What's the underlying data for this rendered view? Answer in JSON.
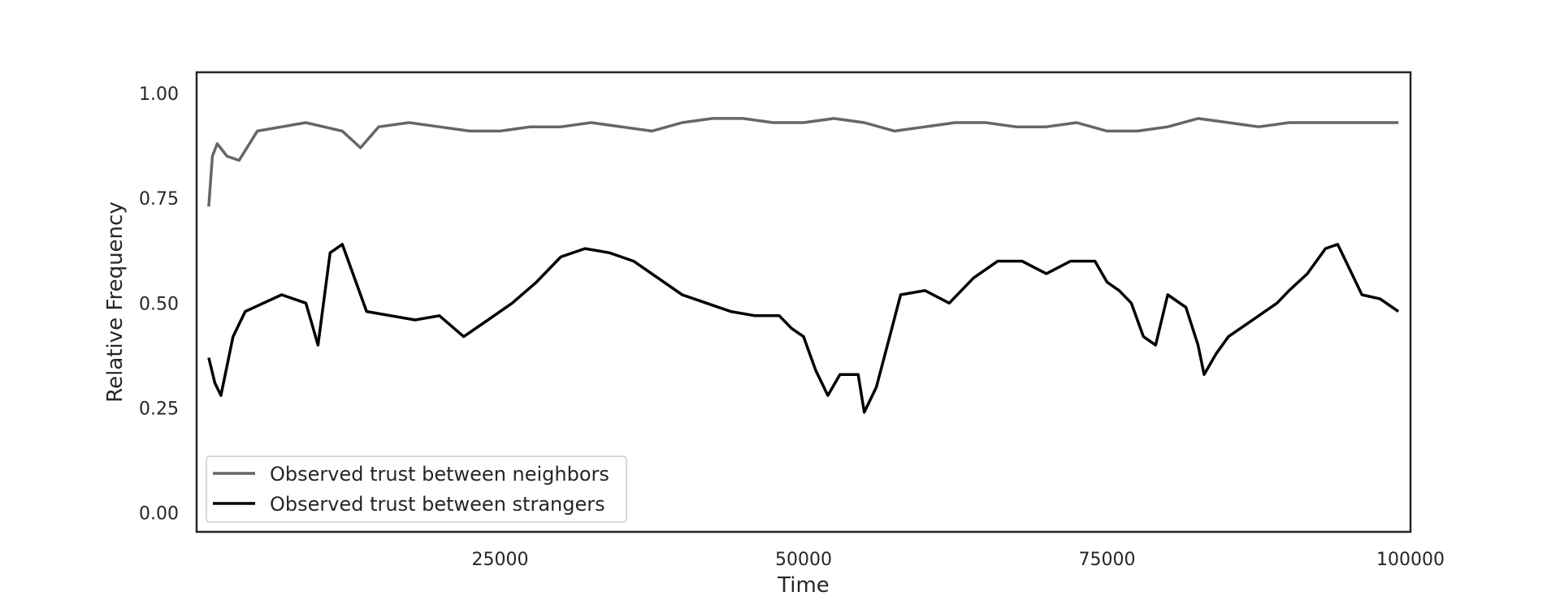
{
  "chart_data": {
    "type": "line",
    "title": "",
    "xlabel": "Time",
    "ylabel": "Relative Frequency",
    "xlim": [
      0,
      100000
    ],
    "ylim": [
      -0.045,
      1.05
    ],
    "xticks": [
      25000,
      50000,
      75000,
      100000
    ],
    "xtick_labels": [
      "25000",
      "50000",
      "75000",
      "100000"
    ],
    "yticks": [
      0.0,
      0.25,
      0.5,
      0.75,
      1.0
    ],
    "ytick_labels": [
      "0.00",
      "0.25",
      "0.50",
      "0.75",
      "1.00"
    ],
    "grid": false,
    "legend_position": "lower-left",
    "series": [
      {
        "name": "Observed trust between neighbors",
        "color": "#666666",
        "x": [
          1000,
          1300,
          1700,
          2500,
          3500,
          5000,
          7000,
          9000,
          12000,
          13500,
          15000,
          17500,
          20000,
          22500,
          25000,
          27500,
          30000,
          32500,
          35000,
          37500,
          40000,
          42500,
          45000,
          47500,
          50000,
          52500,
          55000,
          57500,
          60000,
          62500,
          65000,
          67500,
          70000,
          72500,
          75000,
          77500,
          80000,
          82500,
          85000,
          87500,
          90000,
          92500,
          95000,
          97500,
          99000
        ],
        "y": [
          0.73,
          0.85,
          0.88,
          0.85,
          0.84,
          0.91,
          0.92,
          0.93,
          0.91,
          0.87,
          0.92,
          0.93,
          0.92,
          0.91,
          0.91,
          0.92,
          0.92,
          0.93,
          0.92,
          0.91,
          0.93,
          0.94,
          0.94,
          0.93,
          0.93,
          0.94,
          0.93,
          0.91,
          0.92,
          0.93,
          0.93,
          0.92,
          0.92,
          0.93,
          0.91,
          0.91,
          0.92,
          0.94,
          0.93,
          0.92,
          0.93,
          0.93,
          0.93,
          0.93,
          0.93
        ]
      },
      {
        "name": "Observed trust between strangers",
        "color": "#000000",
        "x": [
          1000,
          1500,
          2000,
          3000,
          4000,
          5500,
          7000,
          9000,
          10000,
          11000,
          12000,
          14000,
          16000,
          18000,
          20000,
          22000,
          24000,
          26000,
          28000,
          30000,
          32000,
          34000,
          36000,
          38000,
          40000,
          42000,
          44000,
          46000,
          48000,
          49000,
          50000,
          51000,
          52000,
          53000,
          54500,
          55000,
          56000,
          57000,
          58000,
          60000,
          62000,
          64000,
          66000,
          68000,
          70000,
          72000,
          74000,
          75000,
          76000,
          77000,
          78000,
          79000,
          80000,
          81500,
          82500,
          83000,
          84000,
          85000,
          86000,
          87500,
          89000,
          90000,
          91500,
          93000,
          94000,
          95000,
          96000,
          97500,
          99000
        ],
        "y": [
          0.37,
          0.31,
          0.28,
          0.42,
          0.48,
          0.5,
          0.52,
          0.5,
          0.4,
          0.62,
          0.64,
          0.48,
          0.47,
          0.46,
          0.47,
          0.42,
          0.46,
          0.5,
          0.55,
          0.61,
          0.63,
          0.62,
          0.6,
          0.56,
          0.52,
          0.5,
          0.48,
          0.47,
          0.47,
          0.44,
          0.42,
          0.34,
          0.28,
          0.33,
          0.33,
          0.24,
          0.3,
          0.41,
          0.52,
          0.53,
          0.5,
          0.56,
          0.6,
          0.6,
          0.57,
          0.6,
          0.6,
          0.55,
          0.53,
          0.5,
          0.42,
          0.4,
          0.52,
          0.49,
          0.4,
          0.33,
          0.38,
          0.42,
          0.44,
          0.47,
          0.5,
          0.53,
          0.57,
          0.63,
          0.64,
          0.58,
          0.52,
          0.51,
          0.48
        ]
      }
    ]
  }
}
